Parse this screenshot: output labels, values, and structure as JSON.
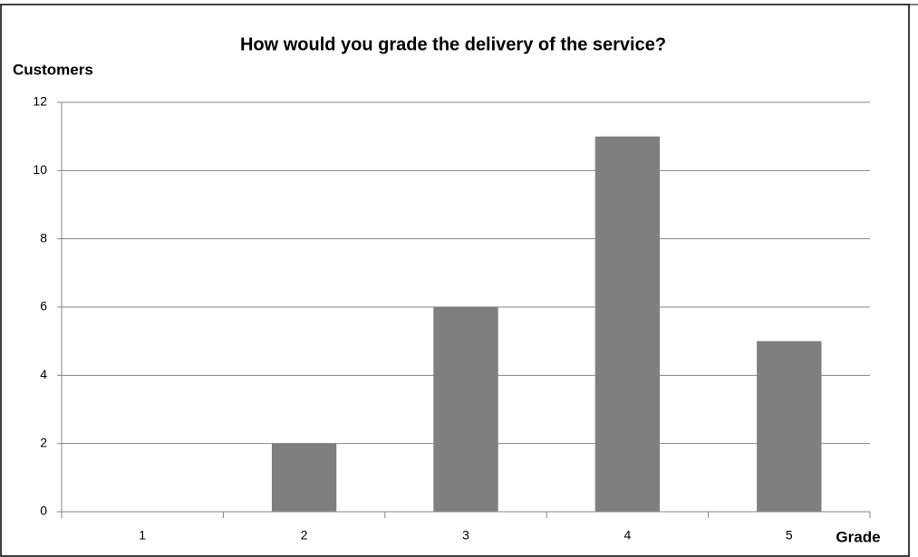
{
  "chart_data": {
    "type": "bar",
    "title": "How would you grade the delivery of the service?",
    "y_label": "Customers",
    "x_label": "Grade",
    "categories": [
      "1",
      "2",
      "3",
      "4",
      "5"
    ],
    "values": [
      0,
      2,
      6,
      11,
      5
    ],
    "color": "#7f7f7f",
    "ylim": [
      0,
      12
    ],
    "yticks": [
      0,
      2,
      4,
      6,
      8,
      10,
      12
    ],
    "grid": true
  }
}
